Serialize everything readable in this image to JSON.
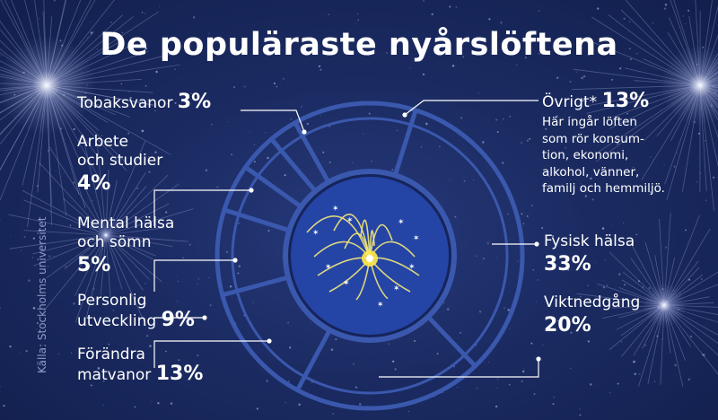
{
  "title": "De populäraste nyårslöftena",
  "source": "Källa: Stockholms universitet",
  "note": [
    "Här ingår löften",
    "som rör konsum-",
    "tion, ekonomi,",
    "alkohol, vänner,",
    "familj och hemmiljö."
  ],
  "chart_data": {
    "type": "pie",
    "title": "De populäraste nyårslöftena",
    "unit": "%",
    "slices": [
      {
        "label": "Fysisk hälsa",
        "value": 33
      },
      {
        "label": "Viktnedgång",
        "value": 20
      },
      {
        "label": "Förändra matvanor",
        "value": 13
      },
      {
        "label": "Personlig utveckling",
        "value": 9
      },
      {
        "label": "Mental hälsa och sömn",
        "value": 5
      },
      {
        "label": "Arbete och studier",
        "value": 4
      },
      {
        "label": "Tobaksvanor",
        "value": 3
      },
      {
        "label": "Övrigt*",
        "value": 13
      }
    ]
  },
  "labels": {
    "fysisk": {
      "name": "Fysisk hälsa",
      "pct": "33%"
    },
    "vikt": {
      "name": "Viktnedgång",
      "pct": "20%"
    },
    "mat": {
      "line1": "Förändra",
      "line2": "matvanor",
      "pct": "13%"
    },
    "personlig": {
      "line1": "Personlig",
      "line2": "utveckling",
      "pct": "9%"
    },
    "mental": {
      "line1": "Mental hälsa",
      "line2": "och sömn",
      "pct": "5%"
    },
    "arbete": {
      "line1": "Arbete",
      "line2": "och studier",
      "pct": "4%"
    },
    "tobak": {
      "name": "Tobaksvanor",
      "pct": "3%"
    },
    "ovrigt": {
      "name": "Övrigt*",
      "pct": "13%"
    }
  }
}
